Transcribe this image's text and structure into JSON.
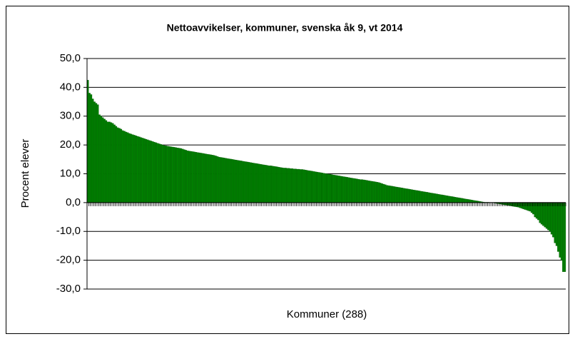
{
  "chart_data": {
    "type": "bar",
    "title": "Nettoavvikelser, kommuner, svenska åk 9, vt 2014",
    "x_label": "Kommuner (288)",
    "y_label": "Procent elever",
    "color": "#008000",
    "grid": true,
    "ylim": [
      -30,
      50
    ],
    "yticks": [
      {
        "value": 50,
        "label": "50,0"
      },
      {
        "value": 40,
        "label": "40,0"
      },
      {
        "value": 30,
        "label": "30,0"
      },
      {
        "value": 20,
        "label": "20,0"
      },
      {
        "value": 10,
        "label": "10,0"
      },
      {
        "value": 0,
        "label": "0,0"
      },
      {
        "value": -10,
        "label": "-10,0"
      },
      {
        "value": -20,
        "label": "-20,0"
      },
      {
        "value": -30,
        "label": "-30,0"
      }
    ],
    "values": [
      42.5,
      38.0,
      37.5,
      36.0,
      35.0,
      34.5,
      34.0,
      30.5,
      30.0,
      29.5,
      29.0,
      28.5,
      28.0,
      28.0,
      27.8,
      27.5,
      27.0,
      26.5,
      26.0,
      25.8,
      25.5,
      25.0,
      24.8,
      24.5,
      24.3,
      24.0,
      23.8,
      23.6,
      23.4,
      23.2,
      23.0,
      22.8,
      22.6,
      22.4,
      22.2,
      22.0,
      21.8,
      21.6,
      21.4,
      21.2,
      21.0,
      20.8,
      20.6,
      20.4,
      20.2,
      20.0,
      19.8,
      19.7,
      19.6,
      19.5,
      19.4,
      19.3,
      19.2,
      19.1,
      19.0,
      18.9,
      18.8,
      18.6,
      18.4,
      18.2,
      18.0,
      17.9,
      17.8,
      17.7,
      17.6,
      17.5,
      17.4,
      17.3,
      17.2,
      17.1,
      17.0,
      16.9,
      16.8,
      16.7,
      16.6,
      16.5,
      16.4,
      16.2,
      16.0,
      15.8,
      15.7,
      15.6,
      15.5,
      15.4,
      15.3,
      15.2,
      15.1,
      15.0,
      14.9,
      14.8,
      14.7,
      14.6,
      14.5,
      14.4,
      14.3,
      14.2,
      14.1,
      14.0,
      13.9,
      13.8,
      13.7,
      13.6,
      13.5,
      13.4,
      13.3,
      13.2,
      13.1,
      13.0,
      12.9,
      12.8,
      12.8,
      12.7,
      12.6,
      12.5,
      12.4,
      12.3,
      12.2,
      12.1,
      12.0,
      12.0,
      11.9,
      11.9,
      11.8,
      11.8,
      11.7,
      11.7,
      11.6,
      11.6,
      11.5,
      11.5,
      11.4,
      11.3,
      11.2,
      11.1,
      11.0,
      10.9,
      10.8,
      10.7,
      10.6,
      10.5,
      10.4,
      10.3,
      10.2,
      10.1,
      10.0,
      9.9,
      9.8,
      9.7,
      9.6,
      9.5,
      9.4,
      9.3,
      9.2,
      9.1,
      9.0,
      8.9,
      8.8,
      8.7,
      8.6,
      8.5,
      8.4,
      8.3,
      8.2,
      8.1,
      8.0,
      8.0,
      7.9,
      7.8,
      7.7,
      7.6,
      7.5,
      7.4,
      7.3,
      7.2,
      7.1,
      7.0,
      6.8,
      6.6,
      6.4,
      6.2,
      6.0,
      5.9,
      5.8,
      5.7,
      5.6,
      5.5,
      5.4,
      5.3,
      5.2,
      5.1,
      5.0,
      4.9,
      4.8,
      4.7,
      4.6,
      4.5,
      4.4,
      4.3,
      4.2,
      4.1,
      4.0,
      3.9,
      3.8,
      3.7,
      3.6,
      3.5,
      3.4,
      3.3,
      3.2,
      3.1,
      3.0,
      2.9,
      2.8,
      2.7,
      2.6,
      2.5,
      2.4,
      2.3,
      2.2,
      2.1,
      2.0,
      1.9,
      1.8,
      1.7,
      1.6,
      1.5,
      1.4,
      1.3,
      1.2,
      1.1,
      1.0,
      0.9,
      0.8,
      0.7,
      0.6,
      0.5,
      0.4,
      0.3,
      0.2,
      0.1,
      0.1,
      0.1,
      0.0,
      0.0,
      -0.1,
      -0.2,
      -0.3,
      -0.4,
      -0.5,
      -0.6,
      -0.7,
      -0.8,
      -0.9,
      -1.0,
      -1.1,
      -1.2,
      -1.3,
      -1.4,
      -1.5,
      -1.6,
      -1.8,
      -2.0,
      -2.2,
      -2.4,
      -2.6,
      -2.8,
      -3.0,
      -3.5,
      -4.0,
      -5.0,
      -5.5,
      -6.0,
      -7.0,
      -7.5,
      -8.0,
      -8.5,
      -9.0,
      -9.5,
      -10.0,
      -11.0,
      -12.0,
      -14.0,
      -15.0,
      -17.0,
      -19.0,
      -20.0,
      -24.0,
      -24.0
    ]
  }
}
